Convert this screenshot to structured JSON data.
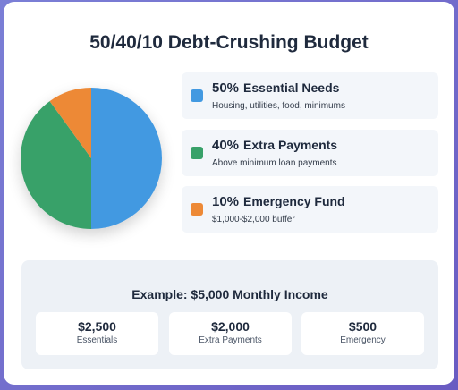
{
  "title": "50/40/10 Debt-Crushing Budget",
  "chart_data": {
    "type": "pie",
    "title": "50/40/10 Debt-Crushing Budget",
    "slices": [
      {
        "label": "Essential Needs",
        "percent_label": "50%",
        "value": 50,
        "color": "#4299e1",
        "description": "Housing, utilities, food, minimums"
      },
      {
        "label": "Extra Payments",
        "percent_label": "40%",
        "value": 40,
        "color": "#38a169",
        "description": "Above minimum loan payments"
      },
      {
        "label": "Emergency Fund",
        "percent_label": "10%",
        "value": 10,
        "color": "#ed8936",
        "description": "$1,000-$2,000 buffer"
      }
    ]
  },
  "example": {
    "title": "Example: $5,000 Monthly Income",
    "items": [
      {
        "amount": "$2,500",
        "label": "Essentials"
      },
      {
        "amount": "$2,000",
        "label": "Extra Payments"
      },
      {
        "amount": "$500",
        "label": "Emergency"
      }
    ]
  }
}
